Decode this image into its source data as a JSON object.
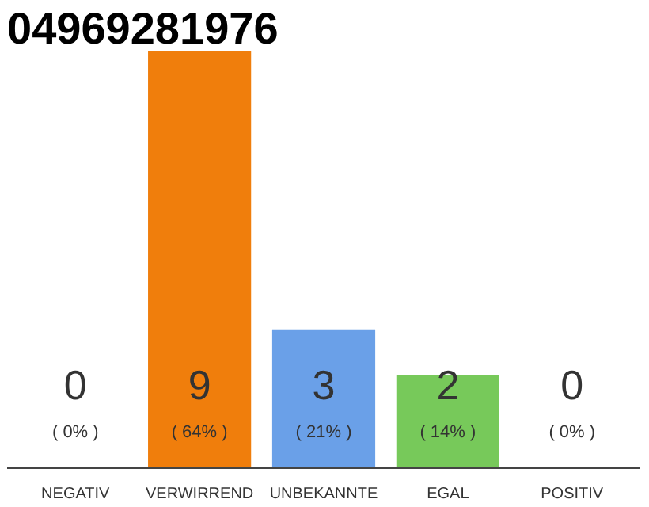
{
  "chart_data": {
    "type": "bar",
    "title": "04969281976",
    "categories": [
      "NEGATIV",
      "VERWIRREND",
      "UNBEKANNTE",
      "EGAL",
      "POSITIV"
    ],
    "values": [
      0,
      9,
      3,
      2,
      0
    ],
    "colors": [
      "#d9d9d9",
      "#f07e0c",
      "#6aa0e8",
      "#77c95a",
      "#d9d9d9"
    ],
    "data_labels": true,
    "tick_labels": "x",
    "annotations": [
      "( 0% )",
      "( 64% )",
      "( 21% )",
      "( 14% )",
      "( 0% )"
    ]
  }
}
